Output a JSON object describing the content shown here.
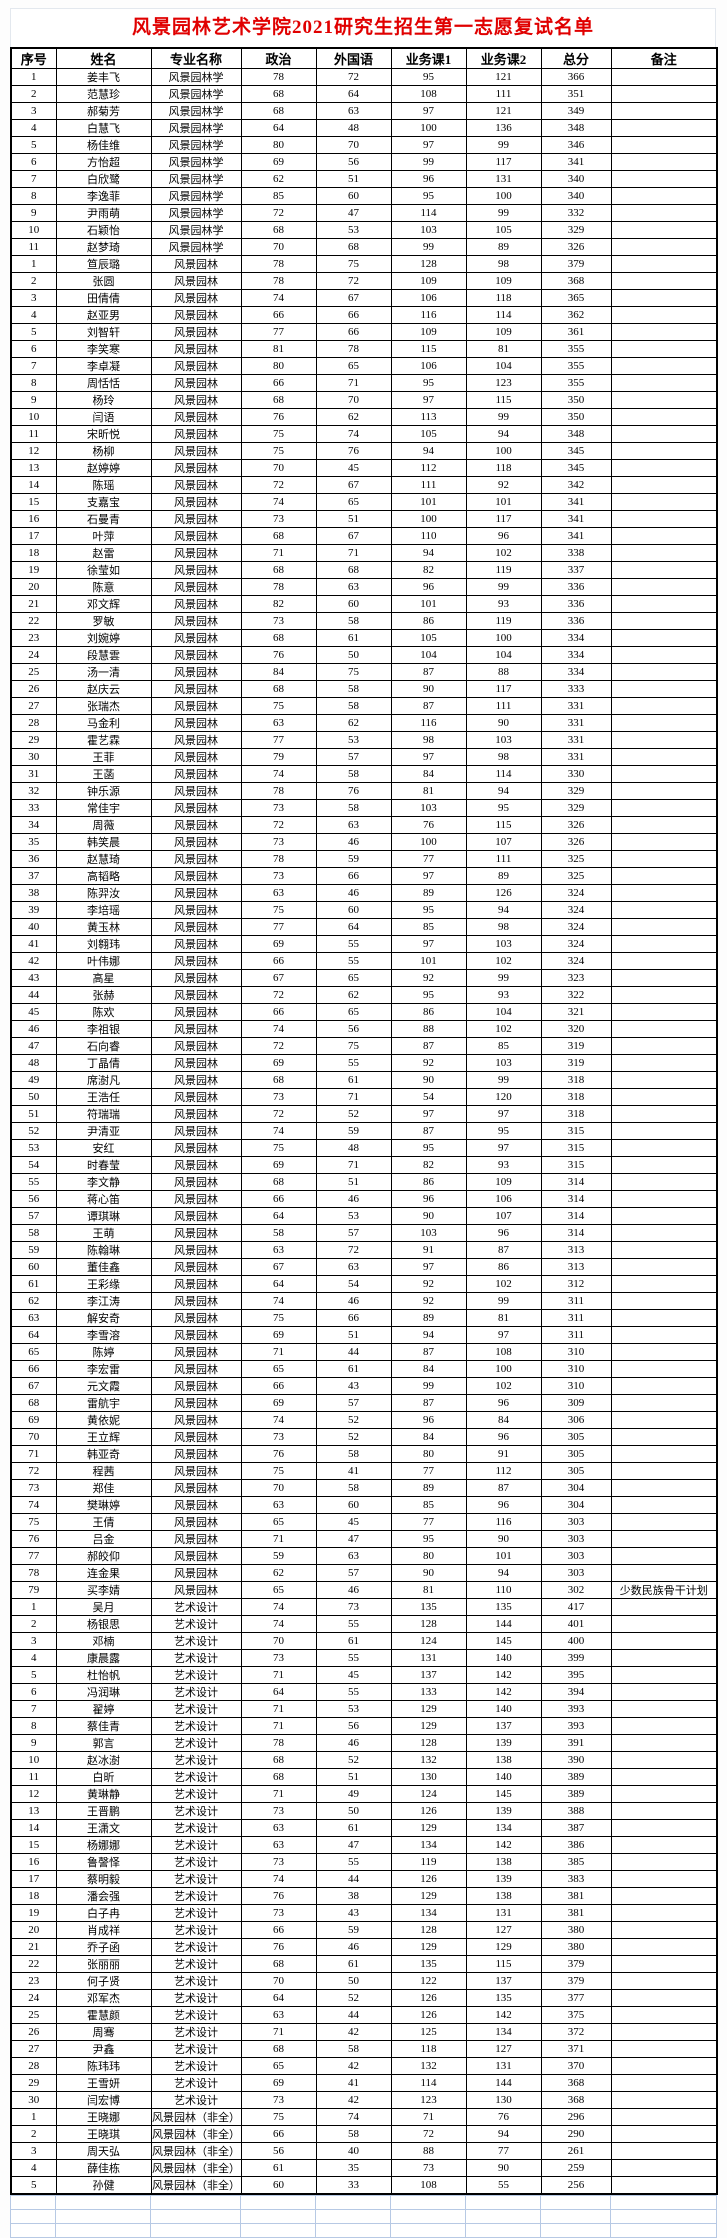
{
  "title": "风景园林艺术学院2021研究生招生第一志愿复试名单",
  "colors": {
    "title_text": "#e00000",
    "table_border": "#000000",
    "empty_grid_border": "#b7c9e4"
  },
  "table": {
    "columns": [
      "序号",
      "姓名",
      "专业名称",
      "政治",
      "外国语",
      "业务课1",
      "业务课2",
      "总分",
      "备注"
    ],
    "row_fields": [
      "no",
      "name",
      "major",
      "politics",
      "foreign-language",
      "course1",
      "course2",
      "total",
      "remark"
    ],
    "rows": [
      [
        1,
        "姜丰飞",
        "风景园林学",
        78,
        72,
        95,
        121,
        366,
        ""
      ],
      [
        2,
        "范慧珍",
        "风景园林学",
        68,
        64,
        108,
        111,
        351,
        ""
      ],
      [
        3,
        "郝菊芳",
        "风景园林学",
        68,
        63,
        97,
        121,
        349,
        ""
      ],
      [
        4,
        "白慧飞",
        "风景园林学",
        64,
        48,
        100,
        136,
        348,
        ""
      ],
      [
        5,
        "杨佳维",
        "风景园林学",
        80,
        70,
        97,
        99,
        346,
        ""
      ],
      [
        6,
        "方怡超",
        "风景园林学",
        69,
        56,
        99,
        117,
        341,
        ""
      ],
      [
        7,
        "白欣鹭",
        "风景园林学",
        62,
        51,
        96,
        131,
        340,
        ""
      ],
      [
        8,
        "李逸菲",
        "风景园林学",
        85,
        60,
        95,
        100,
        340,
        ""
      ],
      [
        9,
        "尹雨萌",
        "风景园林学",
        72,
        47,
        114,
        99,
        332,
        ""
      ],
      [
        10,
        "石颖怡",
        "风景园林学",
        68,
        53,
        103,
        105,
        329,
        ""
      ],
      [
        11,
        "赵梦琦",
        "风景园林学",
        70,
        68,
        99,
        89,
        326,
        ""
      ],
      [
        1,
        "笪辰璐",
        "风景园林",
        78,
        75,
        128,
        98,
        379,
        ""
      ],
      [
        2,
        "张圆",
        "风景园林",
        78,
        72,
        109,
        109,
        368,
        ""
      ],
      [
        3,
        "田倩倩",
        "风景园林",
        74,
        67,
        106,
        118,
        365,
        ""
      ],
      [
        4,
        "赵亚男",
        "风景园林",
        66,
        66,
        116,
        114,
        362,
        ""
      ],
      [
        5,
        "刘智轩",
        "风景园林",
        77,
        66,
        109,
        109,
        361,
        ""
      ],
      [
        6,
        "李笑寒",
        "风景园林",
        81,
        78,
        115,
        81,
        355,
        ""
      ],
      [
        7,
        "李卓凝",
        "风景园林",
        80,
        65,
        106,
        104,
        355,
        ""
      ],
      [
        8,
        "周恬恬",
        "风景园林",
        66,
        71,
        95,
        123,
        355,
        ""
      ],
      [
        9,
        "杨玲",
        "风景园林",
        68,
        70,
        97,
        115,
        350,
        ""
      ],
      [
        10,
        "闫语",
        "风景园林",
        76,
        62,
        113,
        99,
        350,
        ""
      ],
      [
        11,
        "宋昕悦",
        "风景园林",
        75,
        74,
        105,
        94,
        348,
        ""
      ],
      [
        12,
        "杨柳",
        "风景园林",
        75,
        76,
        94,
        100,
        345,
        ""
      ],
      [
        13,
        "赵婷婷",
        "风景园林",
        70,
        45,
        112,
        118,
        345,
        ""
      ],
      [
        14,
        "陈瑶",
        "风景园林",
        72,
        67,
        111,
        92,
        342,
        ""
      ],
      [
        15,
        "支嘉宝",
        "风景园林",
        74,
        65,
        101,
        101,
        341,
        ""
      ],
      [
        16,
        "石曼青",
        "风景园林",
        73,
        51,
        100,
        117,
        341,
        ""
      ],
      [
        17,
        "叶萍",
        "风景园林",
        68,
        67,
        110,
        96,
        341,
        ""
      ],
      [
        18,
        "赵雷",
        "风景园林",
        71,
        71,
        94,
        102,
        338,
        ""
      ],
      [
        19,
        "徐莹如",
        "风景园林",
        68,
        68,
        82,
        119,
        337,
        ""
      ],
      [
        20,
        "陈意",
        "风景园林",
        78,
        63,
        96,
        99,
        336,
        ""
      ],
      [
        21,
        "邓文辉",
        "风景园林",
        82,
        60,
        101,
        93,
        336,
        ""
      ],
      [
        22,
        "罗敏",
        "风景园林",
        73,
        58,
        86,
        119,
        336,
        ""
      ],
      [
        23,
        "刘婉婷",
        "风景园林",
        68,
        61,
        105,
        100,
        334,
        ""
      ],
      [
        24,
        "段慧雲",
        "风景园林",
        76,
        50,
        104,
        104,
        334,
        ""
      ],
      [
        25,
        "汤一清",
        "风景园林",
        84,
        75,
        87,
        88,
        334,
        ""
      ],
      [
        26,
        "赵庆云",
        "风景园林",
        68,
        58,
        90,
        117,
        333,
        ""
      ],
      [
        27,
        "张瑞杰",
        "风景园林",
        75,
        58,
        87,
        111,
        331,
        ""
      ],
      [
        28,
        "马金利",
        "风景园林",
        63,
        62,
        116,
        90,
        331,
        ""
      ],
      [
        29,
        "霍艺霖",
        "风景园林",
        77,
        53,
        98,
        103,
        331,
        ""
      ],
      [
        30,
        "王菲",
        "风景园林",
        79,
        57,
        97,
        98,
        331,
        ""
      ],
      [
        31,
        "王菡",
        "风景园林",
        74,
        58,
        84,
        114,
        330,
        ""
      ],
      [
        32,
        "钟乐源",
        "风景园林",
        78,
        76,
        81,
        94,
        329,
        ""
      ],
      [
        33,
        "常佳宇",
        "风景园林",
        73,
        58,
        103,
        95,
        329,
        ""
      ],
      [
        34,
        "周薇",
        "风景园林",
        72,
        63,
        76,
        115,
        326,
        ""
      ],
      [
        35,
        "韩笑晨",
        "风景园林",
        73,
        46,
        100,
        107,
        326,
        ""
      ],
      [
        36,
        "赵慧琦",
        "风景园林",
        78,
        59,
        77,
        111,
        325,
        ""
      ],
      [
        37,
        "高韬略",
        "风景园林",
        73,
        66,
        97,
        89,
        325,
        ""
      ],
      [
        38,
        "陈羿汝",
        "风景园林",
        63,
        46,
        89,
        126,
        324,
        ""
      ],
      [
        39,
        "李培瑶",
        "风景园林",
        75,
        60,
        95,
        94,
        324,
        ""
      ],
      [
        40,
        "黄玉林",
        "风景园林",
        77,
        64,
        85,
        98,
        324,
        ""
      ],
      [
        41,
        "刘翱玮",
        "风景园林",
        69,
        55,
        97,
        103,
        324,
        ""
      ],
      [
        42,
        "叶伟娜",
        "风景园林",
        66,
        55,
        101,
        102,
        324,
        ""
      ],
      [
        43,
        "高星",
        "风景园林",
        67,
        65,
        92,
        99,
        323,
        ""
      ],
      [
        44,
        "张赫",
        "风景园林",
        72,
        62,
        95,
        93,
        322,
        ""
      ],
      [
        45,
        "陈欢",
        "风景园林",
        66,
        65,
        86,
        104,
        321,
        ""
      ],
      [
        46,
        "李祖银",
        "风景园林",
        74,
        56,
        88,
        102,
        320,
        ""
      ],
      [
        47,
        "石向睿",
        "风景园林",
        72,
        75,
        87,
        85,
        319,
        ""
      ],
      [
        48,
        "丁晶倩",
        "风景园林",
        69,
        55,
        92,
        103,
        319,
        ""
      ],
      [
        49,
        "席澍凡",
        "风景园林",
        68,
        61,
        90,
        99,
        318,
        ""
      ],
      [
        50,
        "王浩任",
        "风景园林",
        73,
        71,
        54,
        120,
        318,
        ""
      ],
      [
        51,
        "符瑞瑞",
        "风景园林",
        72,
        52,
        97,
        97,
        318,
        ""
      ],
      [
        52,
        "尹清亚",
        "风景园林",
        74,
        59,
        87,
        95,
        315,
        ""
      ],
      [
        53,
        "安红",
        "风景园林",
        75,
        48,
        95,
        97,
        315,
        ""
      ],
      [
        54,
        "时春莹",
        "风景园林",
        69,
        71,
        82,
        93,
        315,
        ""
      ],
      [
        55,
        "李文静",
        "风景园林",
        68,
        51,
        86,
        109,
        314,
        ""
      ],
      [
        56,
        "蒋心笛",
        "风景园林",
        66,
        46,
        96,
        106,
        314,
        ""
      ],
      [
        57,
        "谭琪琳",
        "风景园林",
        64,
        53,
        90,
        107,
        314,
        ""
      ],
      [
        58,
        "王萌",
        "风景园林",
        58,
        57,
        103,
        96,
        314,
        ""
      ],
      [
        59,
        "陈翰琳",
        "风景园林",
        63,
        72,
        91,
        87,
        313,
        ""
      ],
      [
        60,
        "董佳鑫",
        "风景园林",
        67,
        63,
        97,
        86,
        313,
        ""
      ],
      [
        61,
        "王彩缘",
        "风景园林",
        64,
        54,
        92,
        102,
        312,
        ""
      ],
      [
        62,
        "李江涛",
        "风景园林",
        74,
        46,
        92,
        99,
        311,
        ""
      ],
      [
        63,
        "解安奇",
        "风景园林",
        75,
        66,
        89,
        81,
        311,
        ""
      ],
      [
        64,
        "李雪溶",
        "风景园林",
        69,
        51,
        94,
        97,
        311,
        ""
      ],
      [
        65,
        "陈婷",
        "风景园林",
        71,
        44,
        87,
        108,
        310,
        ""
      ],
      [
        66,
        "李宏雷",
        "风景园林",
        65,
        61,
        84,
        100,
        310,
        ""
      ],
      [
        67,
        "元文霞",
        "风景园林",
        66,
        43,
        99,
        102,
        310,
        ""
      ],
      [
        68,
        "雷航宇",
        "风景园林",
        69,
        57,
        87,
        96,
        309,
        ""
      ],
      [
        69,
        "黄依妮",
        "风景园林",
        74,
        52,
        96,
        84,
        306,
        ""
      ],
      [
        70,
        "王立辉",
        "风景园林",
        73,
        52,
        84,
        96,
        305,
        ""
      ],
      [
        71,
        "韩亚奇",
        "风景园林",
        76,
        58,
        80,
        91,
        305,
        ""
      ],
      [
        72,
        "程茜",
        "风景园林",
        75,
        41,
        77,
        112,
        305,
        ""
      ],
      [
        73,
        "郑佳",
        "风景园林",
        70,
        58,
        89,
        87,
        304,
        ""
      ],
      [
        74,
        "樊琳婷",
        "风景园林",
        63,
        60,
        85,
        96,
        304,
        ""
      ],
      [
        75,
        "王倩",
        "风景园林",
        65,
        45,
        77,
        116,
        303,
        ""
      ],
      [
        76,
        "吕金",
        "风景园林",
        71,
        47,
        95,
        90,
        303,
        ""
      ],
      [
        77,
        "郝皎仰",
        "风景园林",
        59,
        63,
        80,
        101,
        303,
        ""
      ],
      [
        78,
        "连金果",
        "风景园林",
        62,
        57,
        90,
        94,
        303,
        ""
      ],
      [
        79,
        "买李婧",
        "风景园林",
        65,
        46,
        81,
        110,
        302,
        "少数民族骨干计划"
      ],
      [
        1,
        "吴月",
        "艺术设计",
        74,
        73,
        135,
        135,
        417,
        ""
      ],
      [
        2,
        "杨银思",
        "艺术设计",
        74,
        55,
        128,
        144,
        401,
        ""
      ],
      [
        3,
        "邓楠",
        "艺术设计",
        70,
        61,
        124,
        145,
        400,
        ""
      ],
      [
        4,
        "康晨露",
        "艺术设计",
        73,
        55,
        131,
        140,
        399,
        ""
      ],
      [
        5,
        "杜怡帆",
        "艺术设计",
        71,
        45,
        137,
        142,
        395,
        ""
      ],
      [
        6,
        "冯润琳",
        "艺术设计",
        64,
        55,
        133,
        142,
        394,
        ""
      ],
      [
        7,
        "翟婷",
        "艺术设计",
        71,
        53,
        129,
        140,
        393,
        ""
      ],
      [
        8,
        "蔡佳青",
        "艺术设计",
        71,
        56,
        129,
        137,
        393,
        ""
      ],
      [
        9,
        "郭言",
        "艺术设计",
        78,
        46,
        128,
        139,
        391,
        ""
      ],
      [
        10,
        "赵冰澍",
        "艺术设计",
        68,
        52,
        132,
        138,
        390,
        ""
      ],
      [
        11,
        "白昕",
        "艺术设计",
        68,
        51,
        130,
        140,
        389,
        ""
      ],
      [
        12,
        "黄琳静",
        "艺术设计",
        71,
        49,
        124,
        145,
        389,
        ""
      ],
      [
        13,
        "王晋鹏",
        "艺术设计",
        73,
        50,
        126,
        139,
        388,
        ""
      ],
      [
        14,
        "王潇文",
        "艺术设计",
        63,
        61,
        129,
        134,
        387,
        ""
      ],
      [
        15,
        "杨娜娜",
        "艺术设计",
        63,
        47,
        134,
        142,
        386,
        ""
      ],
      [
        16,
        "鲁謦怿",
        "艺术设计",
        73,
        55,
        119,
        138,
        385,
        ""
      ],
      [
        17,
        "蔡明毅",
        "艺术设计",
        74,
        44,
        126,
        139,
        383,
        ""
      ],
      [
        18,
        "潘会强",
        "艺术设计",
        76,
        38,
        129,
        138,
        381,
        ""
      ],
      [
        19,
        "白子冉",
        "艺术设计",
        73,
        43,
        134,
        131,
        381,
        ""
      ],
      [
        20,
        "肖成祥",
        "艺术设计",
        66,
        59,
        128,
        127,
        380,
        ""
      ],
      [
        21,
        "乔子函",
        "艺术设计",
        76,
        46,
        129,
        129,
        380,
        ""
      ],
      [
        22,
        "张丽丽",
        "艺术设计",
        68,
        61,
        135,
        115,
        379,
        ""
      ],
      [
        23,
        "何子贤",
        "艺术设计",
        70,
        50,
        122,
        137,
        379,
        ""
      ],
      [
        24,
        "邓军杰",
        "艺术设计",
        64,
        52,
        126,
        135,
        377,
        ""
      ],
      [
        25,
        "霍慧颜",
        "艺术设计",
        63,
        44,
        126,
        142,
        375,
        ""
      ],
      [
        26,
        "周骞",
        "艺术设计",
        71,
        42,
        125,
        134,
        372,
        ""
      ],
      [
        27,
        "尹鑫",
        "艺术设计",
        68,
        58,
        118,
        127,
        371,
        ""
      ],
      [
        28,
        "陈玮玮",
        "艺术设计",
        65,
        42,
        132,
        131,
        370,
        ""
      ],
      [
        29,
        "王雪妍",
        "艺术设计",
        69,
        41,
        114,
        144,
        368,
        ""
      ],
      [
        30,
        "闫宏博",
        "艺术设计",
        73,
        42,
        123,
        130,
        368,
        ""
      ],
      [
        1,
        "王晓娜",
        "风景园林（非全）",
        75,
        74,
        71,
        76,
        296,
        ""
      ],
      [
        2,
        "王晓琪",
        "风景园林（非全）",
        66,
        58,
        72,
        94,
        290,
        ""
      ],
      [
        3,
        "周天弘",
        "风景园林（非全）",
        56,
        40,
        88,
        77,
        261,
        ""
      ],
      [
        4,
        "薛佳栋",
        "风景园林（非全）",
        61,
        35,
        73,
        90,
        259,
        ""
      ],
      [
        5,
        "孙健",
        "风景园林（非全）",
        60,
        33,
        108,
        55,
        256,
        ""
      ]
    ]
  }
}
